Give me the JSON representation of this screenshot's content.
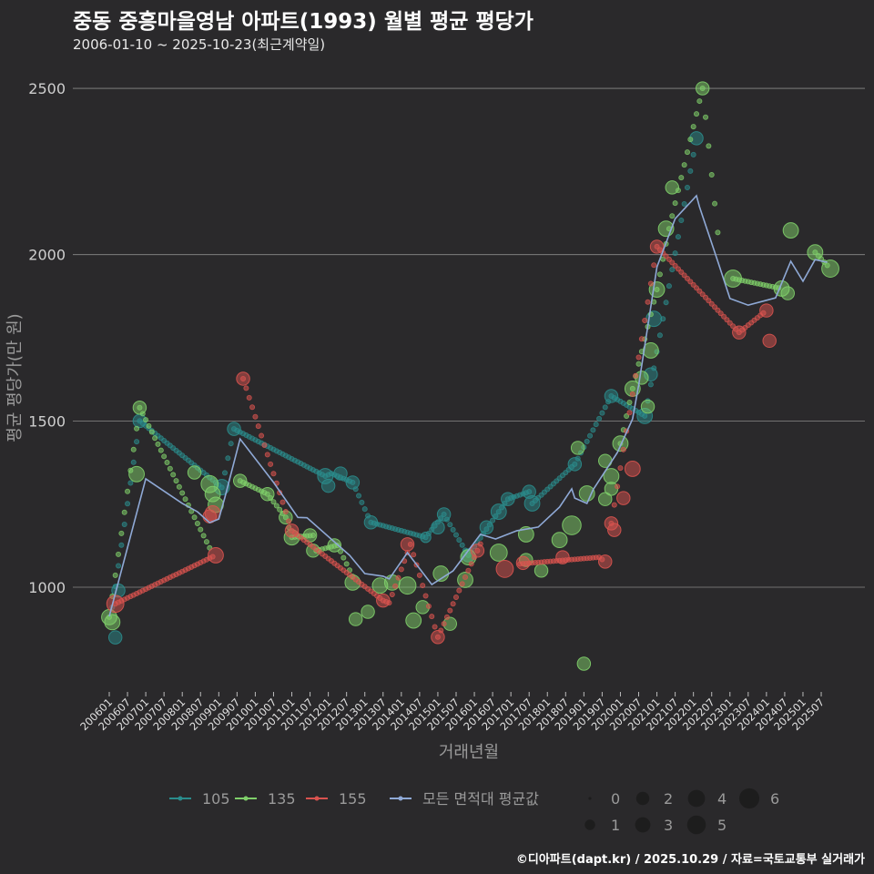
{
  "header": {
    "title": "중동 중흥마을영남 아파트(1993) 월별 평균 평당가",
    "subtitle": "2006-01-10 ~ 2025-10-23(최근계약일)"
  },
  "footer": "©디아파트(dapt.kr) / 2025.10.29 / 자료=국토교통부 실거래가",
  "chart_data": {
    "type": "scatter",
    "xlabel": "거래년월",
    "ylabel": "평균 평당가(만 원)",
    "ylim": [
      700,
      2550
    ],
    "yticks": [
      1000,
      1500,
      2000,
      2500
    ],
    "grid": true,
    "xticks": [
      "200601",
      "200607",
      "200701",
      "200707",
      "200801",
      "200807",
      "200901",
      "200907",
      "201001",
      "201007",
      "201101",
      "201107",
      "201201",
      "201207",
      "201301",
      "201307",
      "201401",
      "201407",
      "201501",
      "201507",
      "201601",
      "201607",
      "201701",
      "201707",
      "201801",
      "201807",
      "201901",
      "201907",
      "202001",
      "202007",
      "202101",
      "202107",
      "202201",
      "202207",
      "202301",
      "202307",
      "202401",
      "202407",
      "202501",
      "202507"
    ],
    "legend": {
      "placement": "bottom",
      "series_labels": [
        "105",
        "135",
        "155",
        "모든 면적대 평균값"
      ],
      "size_labels": [
        "0",
        "1",
        "2",
        "3",
        "4",
        "5",
        "6"
      ]
    },
    "series": [
      {
        "name": "105",
        "color": "#2a8c8c",
        "segments": [
          [
            [
              "200602",
              940
            ],
            [
              "200611",
              1500
            ],
            [
              "200902",
              1300
            ],
            [
              "200906",
              1476
            ],
            [
              "201112",
              1334
            ],
            [
              "201202",
              1342
            ],
            [
              "201209",
              1315
            ],
            [
              "201303",
              1195
            ],
            [
              "201409",
              1150
            ],
            [
              "201503",
              1219
            ],
            [
              "201511",
              1096
            ],
            [
              "201609",
              1227
            ],
            [
              "201612",
              1265
            ],
            [
              "201707",
              1287
            ],
            [
              "201708",
              1252
            ],
            [
              "201810",
              1370
            ],
            [
              "201910",
              1575
            ],
            [
              "202009",
              1515
            ],
            [
              "202010",
              1560
            ],
            [
              "202202",
              2350
            ]
          ]
        ],
        "trades": [
          [
            "200603",
            849,
            2
          ],
          [
            "200604",
            990,
            2
          ],
          [
            "200611",
            1500,
            2
          ],
          [
            "200902",
            1301,
            3
          ],
          [
            "200906",
            1476,
            2
          ],
          [
            "201112",
            1334,
            3
          ],
          [
            "201201",
            1305,
            2
          ],
          [
            "201205",
            1342,
            2
          ],
          [
            "201209",
            1315,
            2
          ],
          [
            "201303",
            1195,
            2
          ],
          [
            "201409",
            1150,
            1
          ],
          [
            "201501",
            1180,
            2
          ],
          [
            "201503",
            1219,
            2
          ],
          [
            "201511",
            1096,
            2
          ],
          [
            "201605",
            1180,
            2
          ],
          [
            "201609",
            1227,
            3
          ],
          [
            "201612",
            1265,
            2
          ],
          [
            "201707",
            1287,
            2
          ],
          [
            "201708",
            1252,
            3
          ],
          [
            "201810",
            1370,
            2
          ],
          [
            "201910",
            1575,
            2
          ],
          [
            "202009",
            1515,
            3
          ],
          [
            "202011",
            1640,
            2
          ],
          [
            "202012",
            1807,
            3
          ],
          [
            "202202",
            2350,
            2
          ]
        ]
      },
      {
        "name": "135",
        "color": "#7fcf6a",
        "segments": [
          [
            [
              "200601",
              910
            ],
            [
              "200611",
              1540
            ],
            [
              "200811",
              1100
            ]
          ],
          [
            [
              "200908",
              1320
            ],
            [
              "201005",
              1280
            ],
            [
              "201011",
              1210
            ],
            [
              "201101",
              1150
            ],
            [
              "201108",
              1156
            ],
            [
              "201109",
              1110
            ],
            [
              "201204",
              1126
            ],
            [
              "201210",
              1014
            ]
          ],
          [
            [
              "202001",
              1432
            ],
            [
              "202005",
              1597
            ],
            [
              "202101",
              1895
            ],
            [
              "202105",
              2078
            ],
            [
              "202204",
              2500
            ],
            [
              "202210",
              1980
            ]
          ],
          [
            [
              "202302",
              1928
            ],
            [
              "202406",
              1898
            ]
          ],
          [
            [
              "202505",
              2007
            ],
            [
              "202510",
              1958
            ]
          ]
        ],
        "trades": [
          [
            "200601",
            910,
            3
          ],
          [
            "200602",
            895,
            3
          ],
          [
            "200610",
            1340,
            3
          ],
          [
            "200611",
            1540,
            2
          ],
          [
            "200805",
            1345,
            2
          ],
          [
            "200810",
            1310,
            4
          ],
          [
            "200811",
            1280,
            3
          ],
          [
            "200812",
            1248,
            3
          ],
          [
            "200908",
            1320,
            2
          ],
          [
            "201005",
            1280,
            2
          ],
          [
            "201011",
            1210,
            2
          ],
          [
            "201101",
            1150,
            3
          ],
          [
            "201107",
            1156,
            2
          ],
          [
            "201108",
            1110,
            2
          ],
          [
            "201203",
            1126,
            2
          ],
          [
            "201209",
            1014,
            3
          ],
          [
            "201210",
            904,
            2
          ],
          [
            "201302",
            926,
            2
          ],
          [
            "201306",
            1005,
            3
          ],
          [
            "201310",
            1014,
            3
          ],
          [
            "201403",
            1005,
            4
          ],
          [
            "201408",
            940,
            2
          ],
          [
            "201405",
            900,
            3
          ],
          [
            "201502",
            1041,
            3
          ],
          [
            "201505",
            890,
            2
          ],
          [
            "201510",
            1022,
            3
          ],
          [
            "201511",
            1090,
            3
          ],
          [
            "201609",
            1104,
            4
          ],
          [
            "201706",
            1159,
            3
          ],
          [
            "201706",
            1082,
            2
          ],
          [
            "201711",
            1050,
            2
          ],
          [
            "201809",
            1186,
            5
          ],
          [
            "201805",
            1142,
            3
          ],
          [
            "201901",
            770,
            2
          ],
          [
            "201811",
            1419,
            2
          ],
          [
            "201902",
            1282,
            3
          ],
          [
            "201908",
            1265,
            2
          ],
          [
            "201908",
            1380,
            2
          ],
          [
            "201910",
            1334,
            3
          ],
          [
            "201910",
            1296,
            2
          ],
          [
            "202001",
            1432,
            3
          ],
          [
            "202005",
            1597,
            3
          ],
          [
            "202010",
            1543,
            2
          ],
          [
            "202008",
            1630,
            2
          ],
          [
            "202011",
            1712,
            3
          ],
          [
            "202101",
            1895,
            3
          ],
          [
            "202104",
            2078,
            3
          ],
          [
            "202106",
            2202,
            2
          ],
          [
            "202204",
            2500,
            2
          ],
          [
            "202302",
            1928,
            4
          ],
          [
            "202406",
            1898,
            3
          ],
          [
            "202408",
            1884,
            2
          ],
          [
            "202409",
            2073,
            3
          ],
          [
            "202505",
            2007,
            3
          ],
          [
            "202510",
            1958,
            4
          ]
        ]
      },
      {
        "name": "155",
        "color": "#d9534f",
        "segments": [
          [
            [
              "200603",
              950
            ],
            [
              "200812",
              1096
            ]
          ],
          [
            [
              "200909",
              1627
            ],
            [
              "201101",
              1170
            ],
            [
              "201307",
              960
            ],
            [
              "201309",
              953
            ],
            [
              "201404",
              1129
            ],
            [
              "201501",
              850
            ],
            [
              "201604",
              1150
            ]
          ],
          [
            [
              "201704",
              1070
            ],
            [
              "201906",
              1090
            ],
            [
              "201908",
              1077
            ]
          ],
          [
            [
              "201910",
              1192
            ],
            [
              "202101",
              2024
            ],
            [
              "202304",
              1766
            ],
            [
              "202401",
              1832
            ]
          ]
        ],
        "trades": [
          [
            "200603",
            950,
            4
          ],
          [
            "200812",
            1096,
            3
          ],
          [
            "200909",
            1627,
            2
          ],
          [
            "200810",
            1213,
            2
          ],
          [
            "200811",
            1222,
            3
          ],
          [
            "201101",
            1170,
            2
          ],
          [
            "201307",
            960,
            2
          ],
          [
            "201403",
            1129,
            2
          ],
          [
            "201501",
            850,
            2
          ],
          [
            "201602",
            1110,
            2
          ],
          [
            "201611",
            1055,
            4
          ],
          [
            "201705",
            1073,
            2
          ],
          [
            "201806",
            1090,
            2
          ],
          [
            "201908",
            1077,
            2
          ],
          [
            "201910",
            1192,
            2
          ],
          [
            "201911",
            1172,
            2
          ],
          [
            "202002",
            1268,
            2
          ],
          [
            "202005",
            1356,
            3
          ],
          [
            "202101",
            2024,
            2
          ],
          [
            "202304",
            1766,
            2
          ],
          [
            "202401",
            1832,
            2
          ],
          [
            "202402",
            1741,
            2
          ]
        ]
      },
      {
        "name": "모든 면적대 평균값",
        "color": "#8fa9d6",
        "average_line": [
          [
            "200601",
            912
          ],
          [
            "200701",
            1326
          ],
          [
            "200801",
            1252
          ],
          [
            "200806",
            1227
          ],
          [
            "200810",
            1194
          ],
          [
            "200901",
            1205
          ],
          [
            "200903",
            1270
          ],
          [
            "200908",
            1446
          ],
          [
            "201007",
            1315
          ],
          [
            "201103",
            1210
          ],
          [
            "201106",
            1209
          ],
          [
            "201208",
            1096
          ],
          [
            "201301",
            1041
          ],
          [
            "201307",
            1033
          ],
          [
            "201309",
            1025
          ],
          [
            "201403",
            1104
          ],
          [
            "201411",
            1008
          ],
          [
            "201506",
            1049
          ],
          [
            "201603",
            1159
          ],
          [
            "201608",
            1145
          ],
          [
            "201703",
            1170
          ],
          [
            "201710",
            1181
          ],
          [
            "201805",
            1241
          ],
          [
            "201809",
            1296
          ],
          [
            "201810",
            1268
          ],
          [
            "201902",
            1252
          ],
          [
            "201904",
            1293
          ],
          [
            "201912",
            1405
          ],
          [
            "202005",
            1506
          ],
          [
            "202007",
            1607
          ],
          [
            "202101",
            1963
          ],
          [
            "202107",
            2108
          ],
          [
            "202202",
            2177
          ],
          [
            "202203",
            2144
          ],
          [
            "202209",
            1980
          ],
          [
            "202301",
            1868
          ],
          [
            "202307",
            1848
          ],
          [
            "202404",
            1870
          ],
          [
            "202409",
            1980
          ],
          [
            "202501",
            1920
          ],
          [
            "202505",
            1985
          ],
          [
            "202509",
            1977
          ]
        ]
      }
    ]
  }
}
